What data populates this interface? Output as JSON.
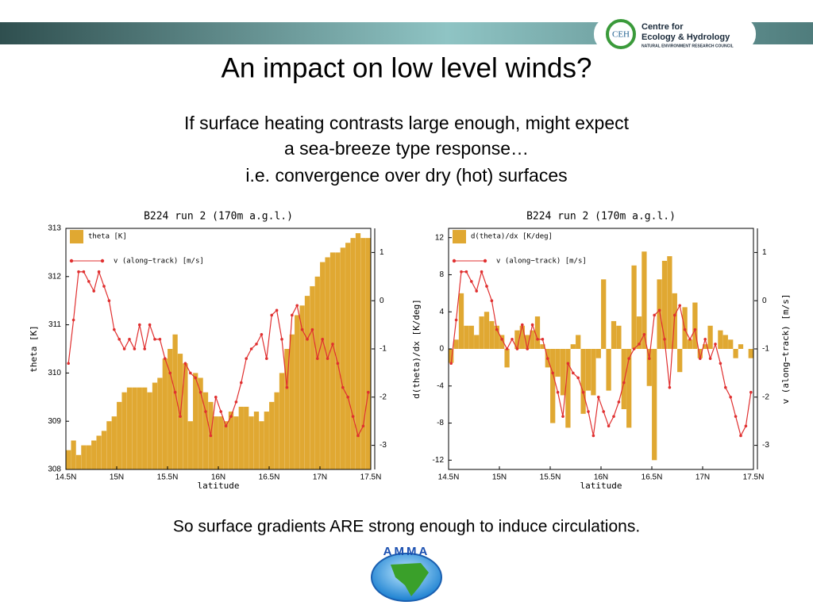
{
  "header": {
    "logo_abbr": "CEH",
    "logo_line1": "Centre for",
    "logo_line2": "Ecology & Hydrology",
    "logo_line3": "NATURAL ENVIRONMENT RESEARCH COUNCIL"
  },
  "title": "An impact on low level winds?",
  "subtitle": [
    "If surface heating contrasts large enough, might expect",
    "a sea-breeze type response…",
    "i.e. convergence over dry (hot) surfaces"
  ],
  "conclusion": "So surface gradients ARE strong enough to induce circulations.",
  "footer_logo": "AMMA",
  "chart_data": [
    {
      "type": "bar",
      "title": "B224 run 2 (170m a.g.l.)",
      "xlabel": "latitude",
      "ylabel": "theta [K]",
      "legend": "upper left",
      "x": [
        14.525,
        14.575,
        14.625,
        14.675,
        14.725,
        14.775,
        14.825,
        14.875,
        14.925,
        14.975,
        15.025,
        15.075,
        15.125,
        15.175,
        15.225,
        15.275,
        15.325,
        15.375,
        15.425,
        15.475,
        15.525,
        15.575,
        15.625,
        15.675,
        15.725,
        15.775,
        15.825,
        15.875,
        15.925,
        15.975,
        16.025,
        16.075,
        16.125,
        16.175,
        16.225,
        16.275,
        16.325,
        16.375,
        16.425,
        16.475,
        16.525,
        16.575,
        16.625,
        16.675,
        16.725,
        16.775,
        16.825,
        16.875,
        16.925,
        16.975,
        17.025,
        17.075,
        17.125,
        17.175,
        17.225,
        17.275,
        17.325,
        17.375,
        17.425,
        17.475
      ],
      "xlim": [
        14.5,
        17.5
      ],
      "xticks": [
        {
          "value": 14.5,
          "label": "14.5N"
        },
        {
          "value": 15,
          "label": "15N"
        },
        {
          "value": 15.5,
          "label": "15.5N"
        },
        {
          "value": 16,
          "label": "16N"
        },
        {
          "value": 16.5,
          "label": "16.5N"
        },
        {
          "value": 17,
          "label": "17N"
        },
        {
          "value": 17.5,
          "label": "17.5N"
        }
      ],
      "ylim": [
        308,
        313
      ],
      "yticks": [
        308,
        309,
        310,
        311,
        312,
        313
      ],
      "y2lim": [
        -3.5,
        1.5
      ],
      "y2ticks": [
        -3,
        -2,
        -1,
        0,
        1
      ],
      "series": [
        {
          "name": "theta [K]",
          "type": "bar",
          "color": "#e0a832",
          "values": [
            308.4,
            308.6,
            308.3,
            308.5,
            308.5,
            308.6,
            308.7,
            308.8,
            309.0,
            309.1,
            309.4,
            309.6,
            309.7,
            309.7,
            309.7,
            309.7,
            309.6,
            309.8,
            309.9,
            310.3,
            310.5,
            310.8,
            310.4,
            310.2,
            309.0,
            310.0,
            309.9,
            309.6,
            309.4,
            309.1,
            309.1,
            309.0,
            309.2,
            309.1,
            309.3,
            309.3,
            309.1,
            309.2,
            309.0,
            309.2,
            309.4,
            309.6,
            310.0,
            310.5,
            310.8,
            311.2,
            311.4,
            311.6,
            311.8,
            312.0,
            312.3,
            312.4,
            312.5,
            312.5,
            312.6,
            312.7,
            312.8,
            312.9,
            312.8,
            312.8
          ]
        },
        {
          "name": "v (along−track) [m/s]",
          "type": "line",
          "axis": "y2",
          "color": "#e03030",
          "values": [
            -1.3,
            -0.4,
            0.6,
            0.6,
            0.4,
            0.2,
            0.6,
            0.3,
            0.0,
            -0.6,
            -0.8,
            -1.0,
            -0.8,
            -1.0,
            -0.5,
            -1.0,
            -0.5,
            -0.8,
            -0.8,
            -1.2,
            -1.5,
            -1.9,
            -2.4,
            -1.3,
            -1.5,
            -1.6,
            -1.9,
            -2.3,
            -2.8,
            -2.0,
            -2.3,
            -2.6,
            -2.4,
            -2.1,
            -1.7,
            -1.2,
            -1.0,
            -0.9,
            -0.7,
            -1.2,
            -0.3,
            -0.2,
            -0.8,
            -1.8,
            -0.3,
            -0.1,
            -0.6,
            -0.8,
            -0.6,
            -1.2,
            -0.8,
            -1.2,
            -0.9,
            -1.3,
            -1.8,
            -2.0,
            -2.4,
            -2.8,
            -2.6,
            -1.9
          ]
        }
      ]
    },
    {
      "type": "bar",
      "title": "B224 run 2 (170m a.g.l.)",
      "xlabel": "latitude",
      "ylabel": "d(theta)/dx [K/deg]",
      "y2label": "v (along−track) [m/s]",
      "legend": "upper left",
      "x": [
        14.525,
        14.575,
        14.625,
        14.675,
        14.725,
        14.775,
        14.825,
        14.875,
        14.925,
        14.975,
        15.025,
        15.075,
        15.125,
        15.175,
        15.225,
        15.275,
        15.325,
        15.375,
        15.425,
        15.475,
        15.525,
        15.575,
        15.625,
        15.675,
        15.725,
        15.775,
        15.825,
        15.875,
        15.925,
        15.975,
        16.025,
        16.075,
        16.125,
        16.175,
        16.225,
        16.275,
        16.325,
        16.375,
        16.425,
        16.475,
        16.525,
        16.575,
        16.625,
        16.675,
        16.725,
        16.775,
        16.825,
        16.875,
        16.925,
        16.975,
        17.025,
        17.075,
        17.125,
        17.175,
        17.225,
        17.275,
        17.325,
        17.375,
        17.425,
        17.475
      ],
      "xlim": [
        14.5,
        17.5
      ],
      "xticks": [
        {
          "value": 14.5,
          "label": "14.5N"
        },
        {
          "value": 15,
          "label": "15N"
        },
        {
          "value": 15.5,
          "label": "15.5N"
        },
        {
          "value": 16,
          "label": "16N"
        },
        {
          "value": 16.5,
          "label": "16.5N"
        },
        {
          "value": 17,
          "label": "17N"
        },
        {
          "value": 17.5,
          "label": "17.5N"
        }
      ],
      "ylim": [
        -13,
        13
      ],
      "yticks": [
        -12,
        -8,
        -4,
        0,
        4,
        8,
        12
      ],
      "y2lim": [
        -3.5,
        1.5
      ],
      "y2ticks": [
        -3,
        -2,
        -1,
        0,
        1
      ],
      "series": [
        {
          "name": "d(theta)/dx [K/deg]",
          "type": "bar",
          "color": "#e0a832",
          "values": [
            -1.5,
            1.0,
            6.0,
            2.5,
            2.5,
            1.5,
            3.5,
            4.0,
            3.0,
            2.5,
            1.5,
            -2.0,
            0.0,
            2.0,
            2.5,
            1.5,
            2.0,
            3.5,
            0.5,
            -2.0,
            -8.0,
            -3.0,
            -5.0,
            -8.5,
            0.5,
            1.5,
            -7.0,
            -4.5,
            -5.0,
            -1.0,
            7.5,
            -4.5,
            3.0,
            2.5,
            -6.5,
            -8.5,
            9.0,
            3.5,
            10.5,
            -4.0,
            -12.0,
            7.5,
            9.5,
            10.0,
            6.0,
            -2.5,
            4.5,
            1.0,
            5.0,
            -1.0,
            0.5,
            2.5,
            0.0,
            2.0,
            1.5,
            1.0,
            -1.0,
            0.5,
            0.0,
            -1.0
          ]
        },
        {
          "name": "v (along−track) [m/s]",
          "type": "line",
          "axis": "y2",
          "color": "#e03030",
          "values": [
            -1.3,
            -0.4,
            0.6,
            0.6,
            0.4,
            0.2,
            0.6,
            0.3,
            0.0,
            -0.6,
            -0.8,
            -1.0,
            -0.8,
            -1.0,
            -0.5,
            -1.0,
            -0.5,
            -0.8,
            -0.8,
            -1.2,
            -1.5,
            -1.9,
            -2.4,
            -1.3,
            -1.5,
            -1.6,
            -1.9,
            -2.3,
            -2.8,
            -2.0,
            -2.3,
            -2.6,
            -2.4,
            -2.1,
            -1.7,
            -1.2,
            -1.0,
            -0.9,
            -0.7,
            -1.2,
            -0.3,
            -0.2,
            -0.8,
            -1.8,
            -0.3,
            -0.1,
            -0.6,
            -0.8,
            -0.6,
            -1.2,
            -0.8,
            -1.2,
            -0.9,
            -1.3,
            -1.8,
            -2.0,
            -2.4,
            -2.8,
            -2.6,
            -1.9
          ]
        }
      ]
    }
  ]
}
